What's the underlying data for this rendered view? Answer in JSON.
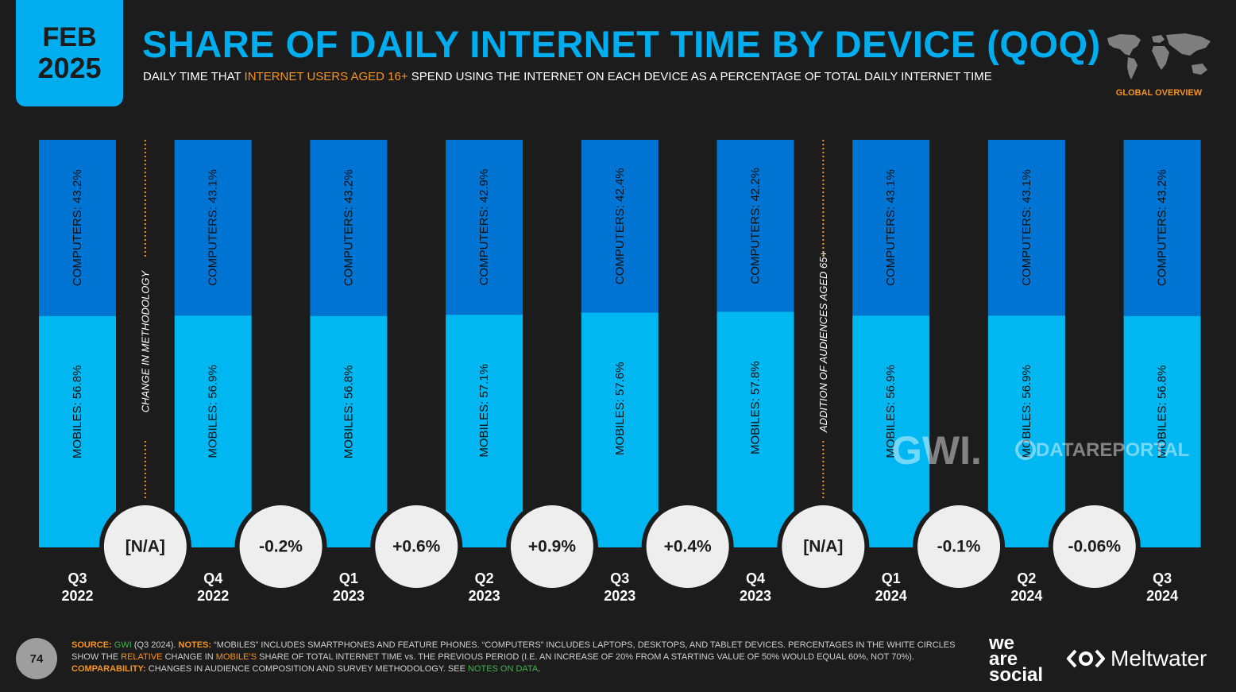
{
  "header": {
    "month": "FEB",
    "year": "2025",
    "title": "SHARE OF DAILY INTERNET TIME BY DEVICE (QOQ)",
    "subtitle_pre": "DAILY TIME THAT ",
    "subtitle_highlight": "INTERNET USERS AGED 16+",
    "subtitle_post": " SPEND USING THE INTERNET ON EACH DEVICE AS A PERCENTAGE OF TOTAL DAILY INTERNET TIME",
    "badge": "GLOBAL OVERVIEW"
  },
  "colors": {
    "mobiles": "#00b7f1",
    "computers": "#0074d3",
    "background": "#1c1c1c",
    "accent": "#f7941d",
    "title": "#00aeef",
    "circle": "#eeeeee"
  },
  "chart_data": {
    "type": "bar",
    "stacked": true,
    "categories": [
      [
        "Q3",
        "2022"
      ],
      [
        "Q4",
        "2022"
      ],
      [
        "Q1",
        "2023"
      ],
      [
        "Q2",
        "2023"
      ],
      [
        "Q3",
        "2023"
      ],
      [
        "Q4",
        "2023"
      ],
      [
        "Q1",
        "2024"
      ],
      [
        "Q2",
        "2024"
      ],
      [
        "Q3",
        "2024"
      ]
    ],
    "series": [
      {
        "name": "MOBILES",
        "values": [
          56.8,
          56.9,
          56.8,
          57.1,
          57.6,
          57.8,
          56.9,
          56.9,
          56.8
        ],
        "labels": [
          "MOBILES: 56.8%",
          "MOBILES: 56.9%",
          "MOBILES: 56.8%",
          "MOBILES: 57.1%",
          "MOBILES: 57.6%",
          "MOBILES: 57.8%",
          "MOBILES: 56.9%",
          "MOBILES: 56.9%",
          "MOBILES: 56.8%"
        ]
      },
      {
        "name": "COMPUTERS",
        "values": [
          43.2,
          43.1,
          43.2,
          42.9,
          42.4,
          42.2,
          43.1,
          43.1,
          43.2
        ],
        "labels": [
          "COMPUTERS: 43.2%",
          "COMPUTERS: 43.1%",
          "COMPUTERS: 43.2%",
          "COMPUTERS: 42.9%",
          "COMPUTERS: 42.4%",
          "COMPUTERS: 42.2%",
          "COMPUTERS: 43.1%",
          "COMPUTERS: 43.1%",
          "COMPUTERS: 43.2%"
        ]
      }
    ],
    "changes": [
      "[N/A]",
      "-0.2%",
      "+0.6%",
      "+0.9%",
      "+0.4%",
      "[N/A]",
      "-0.1%",
      "-0.06%"
    ],
    "annotations": [
      {
        "after_index": 0,
        "text": "CHANGE IN METHODOLOGY"
      },
      {
        "after_index": 5,
        "text": "ADDITION OF AUDIENCES AGED 65+"
      }
    ],
    "ylim": [
      0,
      100
    ]
  },
  "watermarks": {
    "gwi": "GWI.",
    "datareportal": "DATAREPORTAL"
  },
  "footer": {
    "source_label": "SOURCE:",
    "source_name": "GWI",
    "source_detail": " (Q3 2024). ",
    "notes_label": "NOTES:",
    "notes_text_1": " “MOBILES” INCLUDES SMARTPHONES AND FEATURE PHONES. “COMPUTERS” INCLUDES LAPTOPS, DESKTOPS, AND TABLET DEVICES. PERCENTAGES IN THE WHITE CIRCLES SHOW THE ",
    "notes_relative": "RELATIVE",
    "notes_text_2": " CHANGE IN ",
    "notes_mobiles": "MOBILE’S",
    "notes_text_3": " SHARE OF TOTAL INTERNET TIME vs. THE PREVIOUS PERIOD (I.E. AN INCREASE OF 20% FROM A STARTING VALUE OF 50% WOULD EQUAL 60%, NOT 70%).",
    "comparability_label": "COMPARABILITY:",
    "comparability_text": " CHANGES IN AUDIENCE COMPOSITION AND SURVEY METHODOLOGY. SEE ",
    "comparability_link": "NOTES ON DATA",
    "comparability_end": ".",
    "page_number": "74",
    "brand_line1": "we",
    "brand_line2": "are",
    "brand_line3": "social",
    "brand_partner": "Meltwater"
  }
}
